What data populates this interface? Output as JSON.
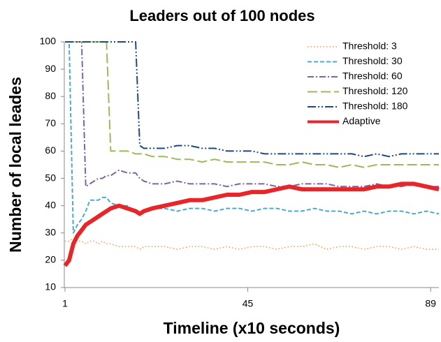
{
  "chart_data": {
    "type": "line",
    "title": "Leaders out of 100 nodes",
    "x_label": "Timeline (x10 seconds)",
    "y_label": "Number of local leades",
    "x": [
      1,
      2,
      3,
      4,
      5,
      6,
      7,
      8,
      9,
      10,
      11,
      12,
      14,
      16,
      18,
      19,
      20,
      22,
      25,
      28,
      31,
      34,
      37,
      40,
      43,
      46,
      49,
      52,
      55,
      58,
      61,
      64,
      67,
      70,
      73,
      76,
      79,
      82,
      85,
      88,
      91
    ],
    "xlim": [
      1,
      91
    ],
    "xticks": [
      1,
      45,
      89
    ],
    "ylim": [
      10,
      100
    ],
    "yticks": [
      10,
      20,
      30,
      40,
      50,
      60,
      70,
      80,
      90,
      100
    ],
    "legend": "top-right",
    "series": [
      {
        "name": "Threshold: 3",
        "color": "#f79646",
        "values": [
          27,
          27,
          28,
          27,
          27,
          26,
          27,
          27,
          26,
          27,
          26,
          26,
          25,
          25,
          25,
          24,
          25,
          25,
          25,
          24,
          25,
          25,
          24,
          25,
          24,
          25,
          25,
          24,
          25,
          25,
          26,
          24,
          25,
          25,
          24,
          25,
          25,
          24,
          25,
          24,
          24
        ]
      },
      {
        "name": "Threshold: 30",
        "color": "#4bacc6",
        "values": [
          100,
          100,
          30,
          33,
          35,
          38,
          42,
          42,
          42,
          43,
          43,
          41,
          40,
          40,
          38,
          37,
          38,
          39,
          39,
          38,
          39,
          39,
          38,
          39,
          39,
          38,
          39,
          39,
          38,
          38,
          39,
          38,
          38,
          37,
          38,
          37,
          38,
          38,
          37,
          38,
          37
        ]
      },
      {
        "name": "Threshold: 60",
        "color": "#8064a2",
        "values": [
          100,
          100,
          100,
          100,
          100,
          47,
          48,
          49,
          50,
          50,
          51,
          51,
          53,
          52,
          52,
          50,
          49,
          48,
          48,
          49,
          48,
          48,
          48,
          47,
          48,
          48,
          48,
          47,
          47,
          48,
          48,
          48,
          47,
          47,
          47,
          48,
          47,
          47,
          48,
          47,
          47
        ]
      },
      {
        "name": "Threshold: 120",
        "color": "#9bbb59",
        "values": [
          100,
          100,
          100,
          100,
          100,
          100,
          100,
          100,
          100,
          100,
          100,
          60,
          60,
          60,
          59,
          59,
          59,
          58,
          58,
          57,
          57,
          56,
          57,
          56,
          56,
          56,
          56,
          55,
          55,
          56,
          55,
          55,
          54,
          55,
          54,
          55,
          55,
          55,
          55,
          55,
          55
        ]
      },
      {
        "name": "Threshold: 180",
        "color": "#1f497d",
        "values": [
          100,
          100,
          100,
          100,
          100,
          100,
          100,
          100,
          100,
          100,
          100,
          100,
          100,
          100,
          100,
          62,
          61,
          61,
          61,
          62,
          62,
          61,
          61,
          60,
          60,
          60,
          59,
          59,
          59,
          59,
          59,
          59,
          59,
          59,
          58,
          59,
          58,
          59,
          59,
          59,
          59
        ]
      },
      {
        "name": "Adaptive",
        "color": "#e8262a",
        "values": [
          18,
          20,
          26,
          29,
          31,
          33,
          34,
          35,
          36,
          37,
          38,
          39,
          40,
          39,
          38,
          37,
          38,
          39,
          40,
          41,
          42,
          42,
          43,
          44,
          44,
          45,
          45,
          46,
          47,
          46,
          46,
          46,
          46,
          46,
          46,
          47,
          47,
          48,
          48,
          47,
          46
        ]
      }
    ]
  }
}
